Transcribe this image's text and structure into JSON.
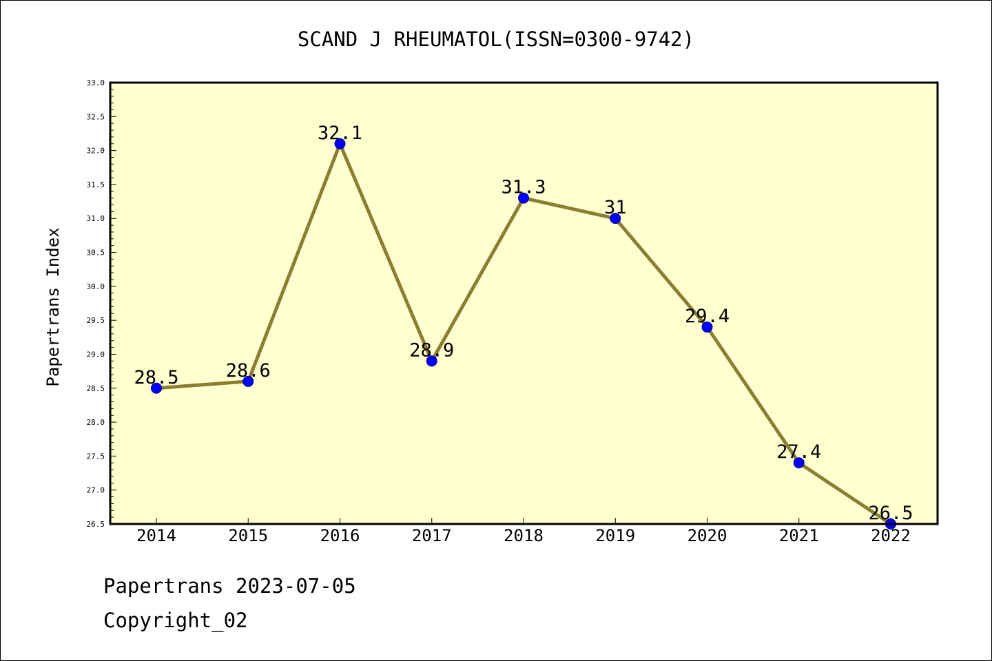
{
  "chart_data": {
    "type": "line",
    "title": "SCAND J RHEUMATOL(ISSN=0300-9742)",
    "xlabel": "",
    "ylabel": "Papertrans Index",
    "categories": [
      "2014",
      "2015",
      "2016",
      "2017",
      "2018",
      "2019",
      "2020",
      "2021",
      "2022"
    ],
    "series": [
      {
        "values": [
          28.5,
          28.6,
          32.1,
          28.9,
          31.3,
          31.0,
          29.4,
          27.4,
          26.5
        ],
        "data_labels": [
          "28.5",
          "28.6",
          "32.1",
          "28.9",
          "31.3",
          "31",
          "29.4",
          "27.4",
          "26.5"
        ]
      }
    ],
    "ylim": [
      26.5,
      33.0
    ],
    "y_ticks": [
      "26.5",
      "27.0",
      "27.5",
      "28.0",
      "28.5",
      "29.0",
      "29.5",
      "30.0",
      "30.5",
      "31.0",
      "31.5",
      "32.0",
      "32.5",
      "33.0"
    ],
    "grid": false,
    "colors": {
      "plot_background": "#ffffd0",
      "line": "#8b7d32",
      "marker": "#0000ff"
    }
  },
  "footer": {
    "line1": "Papertrans 2023-07-05",
    "line2": "Copyright_02"
  }
}
